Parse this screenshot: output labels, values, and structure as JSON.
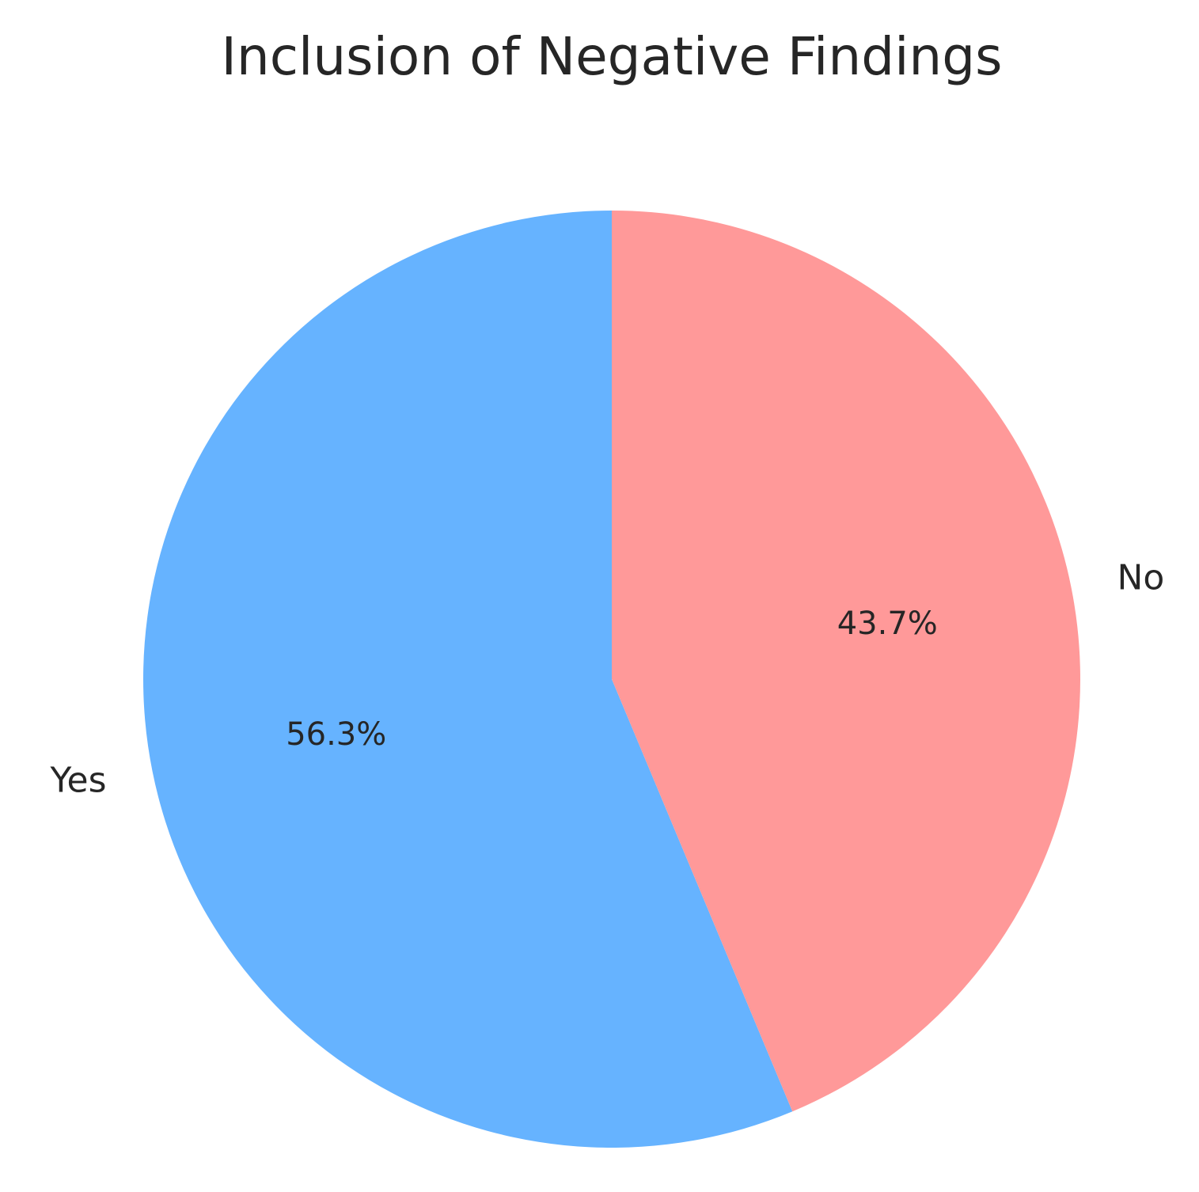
{
  "chart_data": {
    "type": "pie",
    "title": "Inclusion of Negative Findings",
    "slices": [
      {
        "label": "Yes",
        "value": 56.3,
        "pct_label": "56.3%",
        "color": "#66b3ff"
      },
      {
        "label": "No",
        "value": 43.7,
        "pct_label": "43.7%",
        "color": "#ff9999"
      }
    ],
    "start_angle_deg": 90,
    "direction": "counterclockwise",
    "legend": "none"
  }
}
